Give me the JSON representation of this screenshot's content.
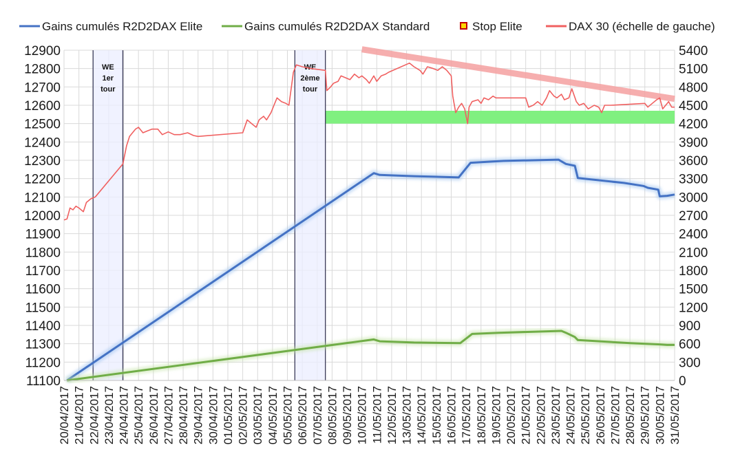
{
  "chart_data": {
    "type": "line",
    "legend_position": "top",
    "grid": true,
    "legend": [
      {
        "key": "elite",
        "label": "Gains cumulés R2D2DAX Elite",
        "color": "#4472C4",
        "marker": "line"
      },
      {
        "key": "standard",
        "label": "Gains cumulés R2D2DAX Standard",
        "color": "#70AD47",
        "marker": "line"
      },
      {
        "key": "stop",
        "label": "Stop Elite",
        "color": "#FFD700",
        "border": "#C00000",
        "marker": "square"
      },
      {
        "key": "dax",
        "label": "DAX 30 (échelle de gauche)",
        "color": "#F06060",
        "marker": "line"
      }
    ],
    "y_left": {
      "min": 11100,
      "max": 12900,
      "step": 100,
      "ticks": [
        "11100",
        "11200",
        "11300",
        "11400",
        "11500",
        "11600",
        "11700",
        "11800",
        "11900",
        "12000",
        "12100",
        "12200",
        "12300",
        "12400",
        "12500",
        "12600",
        "12700",
        "12800",
        "12900"
      ]
    },
    "y_right": {
      "min": 0,
      "max": 5400,
      "step": 300,
      "ticks": [
        "0",
        "300",
        "600",
        "900",
        "1200",
        "1500",
        "1800",
        "2100",
        "2400",
        "2700",
        "3000",
        "3300",
        "3600",
        "3900",
        "4200",
        "4500",
        "4800",
        "5100",
        "5400"
      ]
    },
    "x": {
      "min": 0,
      "max": 41,
      "start_date": "20/04/2017",
      "labels": [
        "20/04/2017",
        "21/04/2017",
        "22/04/2017",
        "23/04/2017",
        "24/04/2017",
        "25/04/2017",
        "26/04/2017",
        "27/04/2017",
        "28/04/2017",
        "29/04/2017",
        "30/04/2017",
        "01/05/2017",
        "02/05/2017",
        "03/05/2017",
        "04/05/2017",
        "05/05/2017",
        "06/05/2017",
        "07/05/2017",
        "08/05/2017",
        "09/05/2017",
        "10/05/2017",
        "11/05/2017",
        "12/05/2017",
        "13/05/2017",
        "14/05/2017",
        "15/05/2017",
        "16/05/2017",
        "17/05/2017",
        "18/05/2017",
        "19/05/2017",
        "20/05/2017",
        "21/05/2017",
        "22/05/2017",
        "23/05/2017",
        "24/05/2017",
        "25/05/2017",
        "26/05/2017",
        "27/05/2017",
        "28/05/2017",
        "29/05/2017",
        "30/05/2017",
        "31/05/2017"
      ]
    },
    "annotations": [
      {
        "label_lines": [
          "WE",
          "1er",
          "tour"
        ],
        "from": 1.95,
        "to": 3.95
      },
      {
        "label_lines": [
          "WE",
          "2ème",
          "tour"
        ],
        "from": 15.5,
        "to": 17.55
      }
    ],
    "zones": [
      {
        "color": "#80F080",
        "x_from": 17.55,
        "x_to": 41,
        "y_from": 12500,
        "y_to": 12570
      }
    ],
    "trend_lines": [
      {
        "color": "#F4A0A0",
        "points": [
          [
            20,
            12905
          ],
          [
            41,
            12635
          ]
        ]
      }
    ],
    "series": [
      {
        "key": "elite",
        "axis": "right",
        "color": "#4472C4",
        "points": [
          [
            0.2,
            0
          ],
          [
            20.8,
            3390
          ],
          [
            21.2,
            3360
          ],
          [
            23.5,
            3340
          ],
          [
            26.5,
            3320
          ],
          [
            27.3,
            3560
          ],
          [
            29.5,
            3590
          ],
          [
            33.2,
            3610
          ],
          [
            33.7,
            3540
          ],
          [
            34.3,
            3510
          ],
          [
            34.5,
            3310
          ],
          [
            37.6,
            3230
          ],
          [
            38.9,
            3180
          ],
          [
            39.2,
            3150
          ],
          [
            39.9,
            3120
          ],
          [
            40.0,
            3010
          ],
          [
            40.5,
            3020
          ],
          [
            41,
            3040
          ]
        ]
      },
      {
        "key": "standard",
        "axis": "right",
        "color": "#70AD47",
        "points": [
          [
            0.2,
            0
          ],
          [
            20.8,
            670
          ],
          [
            21.2,
            640
          ],
          [
            23.5,
            620
          ],
          [
            26.6,
            610
          ],
          [
            27.4,
            760
          ],
          [
            29.2,
            780
          ],
          [
            33.4,
            810
          ],
          [
            33.7,
            780
          ],
          [
            34.3,
            710
          ],
          [
            34.5,
            660
          ],
          [
            38.0,
            610
          ],
          [
            40.0,
            590
          ],
          [
            40.5,
            580
          ],
          [
            41,
            580
          ]
        ]
      },
      {
        "key": "dax",
        "axis": "left",
        "color": "#F06060",
        "points": [
          [
            0,
            11975
          ],
          [
            0.2,
            11980
          ],
          [
            0.4,
            12040
          ],
          [
            0.6,
            12030
          ],
          [
            0.8,
            12050
          ],
          [
            1.0,
            12040
          ],
          [
            1.3,
            12020
          ],
          [
            1.5,
            12070
          ],
          [
            1.8,
            12090
          ],
          [
            2.1,
            12100
          ],
          [
            3.95,
            12280
          ],
          [
            4.2,
            12380
          ],
          [
            4.4,
            12430
          ],
          [
            4.6,
            12450
          ],
          [
            4.8,
            12470
          ],
          [
            5.0,
            12480
          ],
          [
            5.3,
            12450
          ],
          [
            5.6,
            12460
          ],
          [
            5.9,
            12470
          ],
          [
            6.3,
            12470
          ],
          [
            6.6,
            12440
          ],
          [
            7.0,
            12455
          ],
          [
            7.4,
            12440
          ],
          [
            7.8,
            12440
          ],
          [
            8.3,
            12450
          ],
          [
            8.7,
            12435
          ],
          [
            9.0,
            12430
          ],
          [
            12.0,
            12450
          ],
          [
            12.3,
            12520
          ],
          [
            12.6,
            12500
          ],
          [
            12.9,
            12480
          ],
          [
            13.1,
            12520
          ],
          [
            13.4,
            12540
          ],
          [
            13.6,
            12520
          ],
          [
            13.9,
            12560
          ],
          [
            14.1,
            12600
          ],
          [
            14.3,
            12640
          ],
          [
            14.6,
            12620
          ],
          [
            14.9,
            12610
          ],
          [
            15.1,
            12600
          ],
          [
            15.4,
            12780
          ],
          [
            15.6,
            12820
          ],
          [
            16.0,
            12810
          ],
          [
            16.6,
            12800
          ],
          [
            17.55,
            12790
          ],
          [
            17.65,
            12680
          ],
          [
            17.9,
            12700
          ],
          [
            18.1,
            12720
          ],
          [
            18.4,
            12730
          ],
          [
            18.6,
            12760
          ],
          [
            18.9,
            12750
          ],
          [
            19.2,
            12740
          ],
          [
            19.5,
            12770
          ],
          [
            19.8,
            12750
          ],
          [
            20.0,
            12760
          ],
          [
            20.3,
            12740
          ],
          [
            20.5,
            12720
          ],
          [
            20.8,
            12760
          ],
          [
            21.0,
            12730
          ],
          [
            21.3,
            12760
          ],
          [
            21.6,
            12770
          ],
          [
            21.8,
            12780
          ],
          [
            23.2,
            12830
          ],
          [
            23.5,
            12810
          ],
          [
            23.9,
            12790
          ],
          [
            24.1,
            12770
          ],
          [
            24.4,
            12810
          ],
          [
            24.8,
            12800
          ],
          [
            25.1,
            12790
          ],
          [
            25.4,
            12810
          ],
          [
            25.7,
            12790
          ],
          [
            26.0,
            12760
          ],
          [
            26.1,
            12650
          ],
          [
            26.3,
            12560
          ],
          [
            26.5,
            12590
          ],
          [
            26.7,
            12610
          ],
          [
            26.9,
            12580
          ],
          [
            27.1,
            12500
          ],
          [
            27.2,
            12590
          ],
          [
            27.4,
            12620
          ],
          [
            27.8,
            12630
          ],
          [
            28.0,
            12610
          ],
          [
            28.2,
            12640
          ],
          [
            28.5,
            12630
          ],
          [
            28.8,
            12650
          ],
          [
            29.0,
            12640
          ],
          [
            31.0,
            12640
          ],
          [
            31.2,
            12590
          ],
          [
            31.5,
            12600
          ],
          [
            31.8,
            12620
          ],
          [
            32.1,
            12600
          ],
          [
            32.4,
            12640
          ],
          [
            32.6,
            12680
          ],
          [
            32.9,
            12650
          ],
          [
            33.1,
            12640
          ],
          [
            33.4,
            12660
          ],
          [
            33.6,
            12630
          ],
          [
            33.9,
            12640
          ],
          [
            34.1,
            12690
          ],
          [
            34.4,
            12620
          ],
          [
            34.6,
            12600
          ],
          [
            34.9,
            12610
          ],
          [
            35.2,
            12580
          ],
          [
            35.6,
            12600
          ],
          [
            35.9,
            12590
          ],
          [
            36.1,
            12560
          ],
          [
            36.3,
            12600
          ],
          [
            36.7,
            12600
          ],
          [
            39.0,
            12610
          ],
          [
            39.2,
            12590
          ],
          [
            39.5,
            12610
          ],
          [
            39.8,
            12630
          ],
          [
            40.0,
            12640
          ],
          [
            40.2,
            12580
          ],
          [
            40.4,
            12600
          ],
          [
            40.6,
            12620
          ],
          [
            40.8,
            12590
          ],
          [
            41,
            12590
          ]
        ]
      }
    ]
  }
}
